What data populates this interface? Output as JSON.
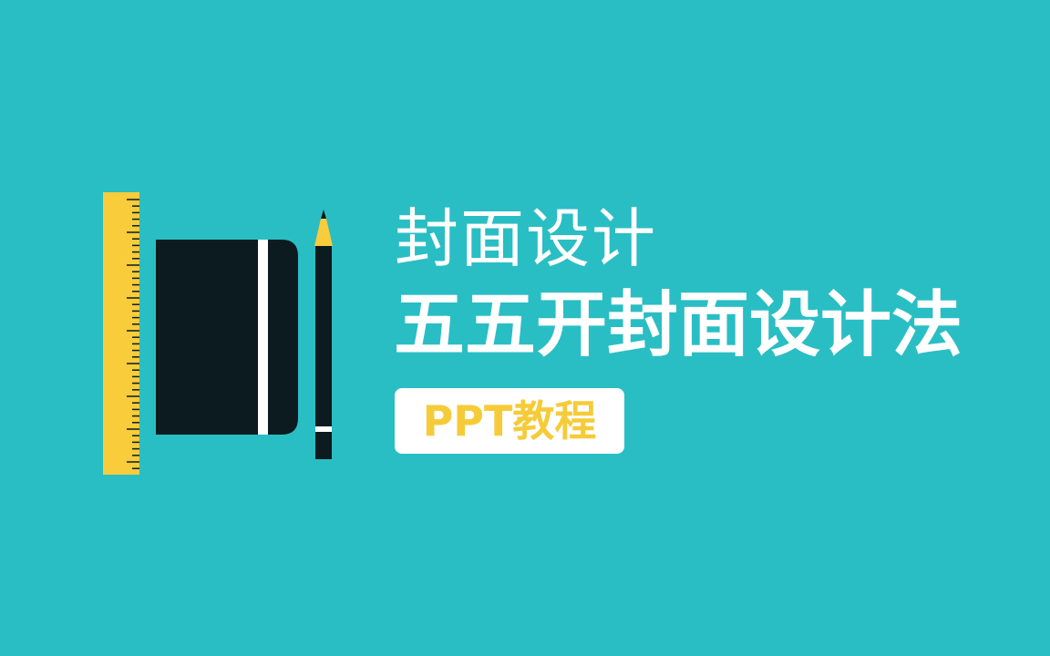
{
  "colors": {
    "background": "#29bec4",
    "ruler": "#f8cc3a",
    "notebook": "#0b1b1f",
    "strap": "#ffffff",
    "pencil_tip": "#f8cc3a",
    "text": "#ffffff",
    "badge_bg": "#ffffff",
    "badge_text": "#f6cb39"
  },
  "illustration": {
    "ruler_icon": "ruler-icon",
    "notebook_icon": "notebook-icon",
    "pencil_icon": "pencil-icon"
  },
  "cover": {
    "subtitle": "封面设计",
    "title": "五五开封面设计法",
    "badge": "PPT教程"
  }
}
